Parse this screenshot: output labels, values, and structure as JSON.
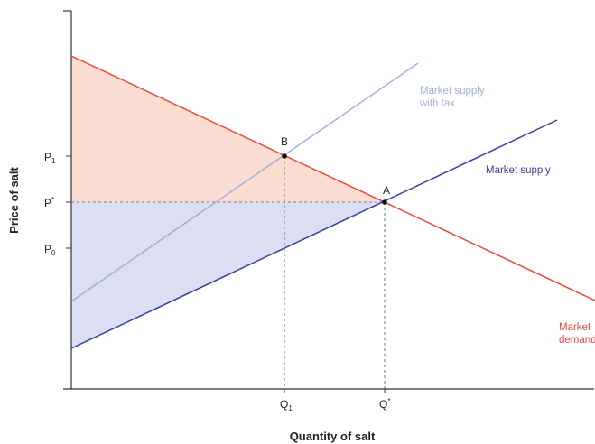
{
  "diagram": {
    "x_axis_title": "Quantity of salt",
    "y_axis_title": "Price of salt",
    "y_ticks": {
      "p1": {
        "main": "P",
        "sub": "1"
      },
      "pstar": {
        "main": "P",
        "sup": "*"
      },
      "p0": {
        "main": "P",
        "sub": "0"
      }
    },
    "x_ticks": {
      "q1": {
        "main": "Q",
        "sub": "1"
      },
      "qstar": {
        "main": "Q",
        "sup": "*"
      }
    },
    "points": {
      "a": "A",
      "b": "B"
    },
    "curves": {
      "supply_with_tax_line1": "Market supply",
      "supply_with_tax_line2": "with tax",
      "supply": "Market supply",
      "demand_line1": "Market",
      "demand_line2": "demand"
    },
    "colors": {
      "demand": "#e8473f",
      "supply": "#3a3ea0",
      "supply_with_tax": "#9fb0db",
      "consumer_area": "#f9ddd0",
      "producer_area": "#dcdff2",
      "axis": "#333333",
      "guide": "#666666"
    }
  }
}
